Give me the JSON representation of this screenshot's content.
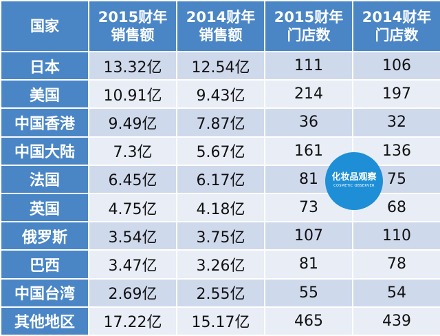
{
  "table": {
    "header": {
      "country": "国家",
      "sales2015": [
        "2015财年",
        "销售额"
      ],
      "sales2014": [
        "2014财年",
        "销售额"
      ],
      "stores2015": [
        "2015财年",
        "门店数"
      ],
      "stores2014": [
        "2014财年",
        "门店数"
      ]
    },
    "rows": [
      [
        "日本",
        "13.32亿",
        "12.54亿",
        "111",
        "106"
      ],
      [
        "美国",
        "10.91亿",
        "9.43亿",
        "214",
        "197"
      ],
      [
        "中国香港",
        "9.49亿",
        "7.87亿",
        "36",
        "32"
      ],
      [
        "中国大陆",
        "7.3亿",
        "5.67亿",
        "161",
        "136"
      ],
      [
        "法国",
        "6.45亿",
        "6.17亿",
        "81",
        "75"
      ],
      [
        "英国",
        "4.75亿",
        "4.18亿",
        "73",
        "68"
      ],
      [
        "俄罗斯",
        "3.54亿",
        "3.75亿",
        "107",
        "110"
      ],
      [
        "巴西",
        "3.47亿",
        "3.26亿",
        "81",
        "78"
      ],
      [
        "中国台湾",
        "2.69亿",
        "2.55亿",
        "55",
        "54"
      ],
      [
        "其他地区",
        "17.22亿",
        "15.17亿",
        "465",
        "439"
      ]
    ]
  },
  "watermark": {
    "title": "化妆品观察",
    "subtitle": "COSMETIC OBSERVER"
  },
  "colors": {
    "header_bg": "#4a86c6",
    "row_odd_bg": "#cfd9ec",
    "row_even_bg": "#e8edf6",
    "watermark_bg": "#1e8fd6"
  }
}
